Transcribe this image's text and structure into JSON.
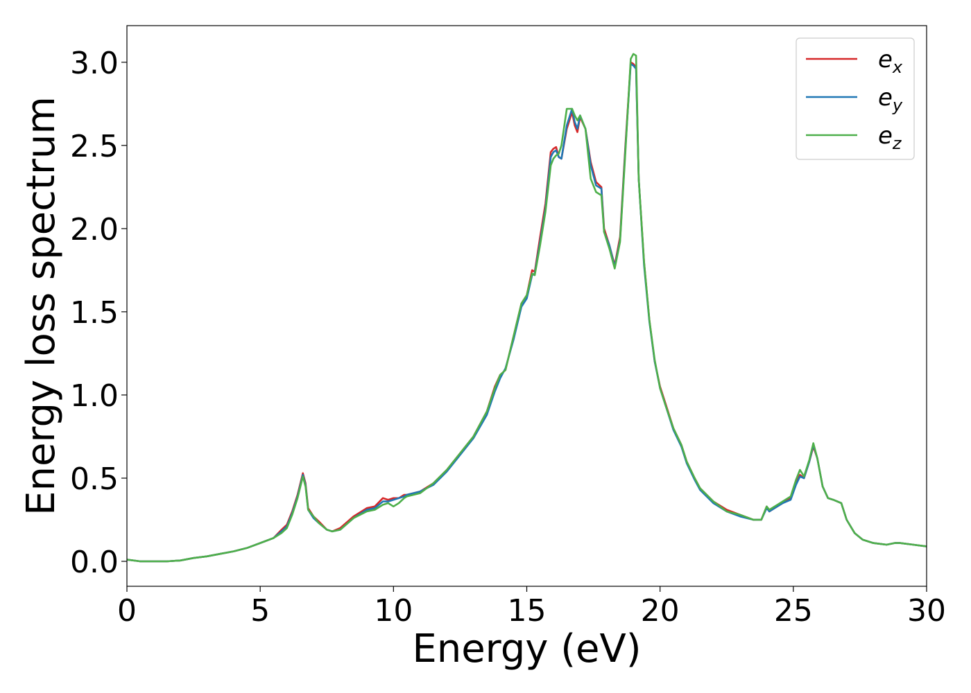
{
  "chart_data": {
    "type": "line",
    "xlabel": "Energy (eV)",
    "ylabel": "Energy loss spectrum",
    "xlim": [
      0,
      30
    ],
    "ylim": [
      -0.15,
      3.22
    ],
    "xticks": [
      0,
      5,
      10,
      15,
      20,
      25,
      30
    ],
    "yticks": [
      0.0,
      0.5,
      1.0,
      1.5,
      2.0,
      2.5,
      3.0
    ],
    "xtick_labels": [
      "0",
      "5",
      "10",
      "15",
      "20",
      "25",
      "30"
    ],
    "ytick_labels": [
      "0.0",
      "0.5",
      "1.0",
      "1.5",
      "2.0",
      "2.5",
      "3.0"
    ],
    "grid": false,
    "legend_position": "top-right",
    "series": [
      {
        "name": "e",
        "subscript": "x",
        "color": "#d62728",
        "x": [
          0,
          0.5,
          1,
          1.5,
          2,
          2.5,
          3,
          3.5,
          4,
          4.5,
          5,
          5.5,
          5.8,
          6,
          6.2,
          6.4,
          6.6,
          6.7,
          6.8,
          7,
          7.2,
          7.5,
          7.7,
          8,
          8.5,
          9,
          9.3,
          9.6,
          9.8,
          10,
          10.2,
          10.4,
          10.5,
          11,
          11.5,
          12,
          12.5,
          13,
          13.5,
          13.8,
          14,
          14.2,
          14.5,
          14.8,
          15,
          15.2,
          15.3,
          15.5,
          15.7,
          15.9,
          16,
          16.1,
          16.2,
          16.3,
          16.5,
          16.7,
          16.8,
          16.9,
          17,
          17.2,
          17.4,
          17.6,
          17.8,
          17.9,
          18.1,
          18.3,
          18.5,
          18.7,
          18.9,
          19.0,
          19.1,
          19.2,
          19.4,
          19.6,
          19.8,
          20,
          20.2,
          20.5,
          20.8,
          21,
          21.3,
          21.5,
          22,
          22.5,
          23,
          23.5,
          23.8,
          24,
          24.1,
          24.3,
          24.6,
          24.9,
          25.1,
          25.25,
          25.4,
          25.6,
          25.75,
          25.9,
          26.1,
          26.3,
          26.5,
          26.8,
          27,
          27.3,
          27.6,
          28,
          28.5,
          28.8,
          29,
          29.5,
          30
        ],
        "y": [
          0.01,
          0,
          0,
          0,
          0.005,
          0.02,
          0.03,
          0.045,
          0.06,
          0.08,
          0.11,
          0.14,
          0.19,
          0.22,
          0.3,
          0.4,
          0.53,
          0.47,
          0.32,
          0.27,
          0.24,
          0.19,
          0.18,
          0.2,
          0.27,
          0.32,
          0.33,
          0.38,
          0.37,
          0.38,
          0.38,
          0.4,
          0.4,
          0.42,
          0.47,
          0.55,
          0.65,
          0.75,
          0.9,
          1.05,
          1.12,
          1.15,
          1.35,
          1.55,
          1.6,
          1.75,
          1.74,
          1.95,
          2.15,
          2.46,
          2.48,
          2.49,
          2.43,
          2.42,
          2.6,
          2.7,
          2.62,
          2.58,
          2.67,
          2.6,
          2.4,
          2.28,
          2.25,
          2.0,
          1.9,
          1.78,
          1.95,
          2.5,
          3.0,
          2.99,
          2.97,
          2.3,
          1.8,
          1.45,
          1.2,
          1.05,
          0.95,
          0.8,
          0.7,
          0.6,
          0.5,
          0.44,
          0.36,
          0.31,
          0.28,
          0.25,
          0.25,
          0.33,
          0.3,
          0.32,
          0.35,
          0.38,
          0.47,
          0.52,
          0.5,
          0.6,
          0.69,
          0.62,
          0.45,
          0.38,
          0.37,
          0.35,
          0.25,
          0.17,
          0.13,
          0.11,
          0.1,
          0.11,
          0.11,
          0.1,
          0.09
        ]
      },
      {
        "name": "e",
        "subscript": "y",
        "color": "#1f77b4",
        "x": [
          0,
          0.5,
          1,
          1.5,
          2,
          2.5,
          3,
          3.5,
          4,
          4.5,
          5,
          5.5,
          5.8,
          6,
          6.2,
          6.4,
          6.6,
          6.7,
          6.8,
          7,
          7.2,
          7.5,
          7.7,
          8,
          8.5,
          9,
          9.3,
          9.6,
          9.8,
          10,
          10.2,
          10.4,
          10.5,
          11,
          11.5,
          12,
          12.5,
          13,
          13.5,
          13.8,
          14,
          14.2,
          14.5,
          14.8,
          15,
          15.2,
          15.3,
          15.5,
          15.7,
          15.9,
          16,
          16.1,
          16.2,
          16.3,
          16.5,
          16.7,
          16.8,
          16.9,
          17,
          17.2,
          17.4,
          17.6,
          17.8,
          17.9,
          18.1,
          18.3,
          18.5,
          18.7,
          18.9,
          19.0,
          19.1,
          19.2,
          19.4,
          19.6,
          19.8,
          20,
          20.2,
          20.5,
          20.8,
          21,
          21.3,
          21.5,
          22,
          22.5,
          23,
          23.5,
          23.8,
          24,
          24.1,
          24.3,
          24.6,
          24.9,
          25.1,
          25.25,
          25.4,
          25.6,
          25.75,
          25.9,
          26.1,
          26.3,
          26.5,
          26.8,
          27,
          27.3,
          27.6,
          28,
          28.5,
          28.8,
          29,
          29.5,
          30
        ],
        "y": [
          0.01,
          0,
          0,
          0,
          0.005,
          0.02,
          0.03,
          0.045,
          0.06,
          0.08,
          0.11,
          0.14,
          0.18,
          0.21,
          0.29,
          0.39,
          0.52,
          0.46,
          0.31,
          0.26,
          0.23,
          0.19,
          0.18,
          0.19,
          0.26,
          0.31,
          0.32,
          0.36,
          0.36,
          0.37,
          0.38,
          0.39,
          0.4,
          0.42,
          0.46,
          0.54,
          0.64,
          0.74,
          0.88,
          1.02,
          1.1,
          1.16,
          1.33,
          1.53,
          1.58,
          1.72,
          1.73,
          1.92,
          2.12,
          2.43,
          2.46,
          2.47,
          2.43,
          2.42,
          2.62,
          2.72,
          2.64,
          2.6,
          2.68,
          2.6,
          2.38,
          2.26,
          2.24,
          1.98,
          1.9,
          1.77,
          1.93,
          2.48,
          2.99,
          2.98,
          2.96,
          2.3,
          1.78,
          1.44,
          1.2,
          1.04,
          0.94,
          0.79,
          0.69,
          0.59,
          0.49,
          0.43,
          0.35,
          0.3,
          0.27,
          0.25,
          0.25,
          0.32,
          0.3,
          0.32,
          0.35,
          0.37,
          0.46,
          0.51,
          0.5,
          0.6,
          0.7,
          0.62,
          0.45,
          0.38,
          0.37,
          0.35,
          0.25,
          0.17,
          0.13,
          0.11,
          0.1,
          0.11,
          0.11,
          0.1,
          0.09
        ]
      },
      {
        "name": "e",
        "subscript": "z",
        "color": "#4daf4a",
        "x": [
          0,
          0.5,
          1,
          1.5,
          2,
          2.5,
          3,
          3.5,
          4,
          4.5,
          5,
          5.5,
          5.8,
          6,
          6.2,
          6.4,
          6.6,
          6.7,
          6.8,
          7,
          7.2,
          7.5,
          7.7,
          8,
          8.5,
          9,
          9.3,
          9.6,
          9.8,
          10,
          10.2,
          10.4,
          10.5,
          11,
          11.5,
          12,
          12.5,
          13,
          13.5,
          13.8,
          14,
          14.2,
          14.5,
          14.8,
          15,
          15.2,
          15.3,
          15.5,
          15.7,
          15.9,
          16,
          16.1,
          16.2,
          16.3,
          16.5,
          16.7,
          16.8,
          16.9,
          17,
          17.2,
          17.4,
          17.6,
          17.8,
          17.9,
          18.1,
          18.3,
          18.5,
          18.7,
          18.9,
          19.0,
          19.1,
          19.2,
          19.4,
          19.6,
          19.8,
          20,
          20.2,
          20.5,
          20.8,
          21,
          21.3,
          21.5,
          22,
          22.5,
          23,
          23.5,
          23.8,
          24,
          24.1,
          24.3,
          24.6,
          24.9,
          25.1,
          25.25,
          25.4,
          25.6,
          25.75,
          25.9,
          26.1,
          26.3,
          26.5,
          26.8,
          27,
          27.3,
          27.6,
          28,
          28.5,
          28.8,
          29,
          29.5,
          30
        ],
        "y": [
          0.01,
          0,
          0,
          0,
          0.005,
          0.02,
          0.03,
          0.045,
          0.06,
          0.08,
          0.11,
          0.14,
          0.17,
          0.2,
          0.28,
          0.38,
          0.51,
          0.45,
          0.31,
          0.27,
          0.23,
          0.19,
          0.18,
          0.19,
          0.26,
          0.3,
          0.31,
          0.34,
          0.35,
          0.33,
          0.35,
          0.38,
          0.39,
          0.41,
          0.47,
          0.55,
          0.65,
          0.75,
          0.9,
          1.04,
          1.12,
          1.15,
          1.35,
          1.55,
          1.6,
          1.73,
          1.72,
          1.9,
          2.1,
          2.38,
          2.42,
          2.44,
          2.45,
          2.5,
          2.72,
          2.72,
          2.68,
          2.65,
          2.68,
          2.6,
          2.3,
          2.22,
          2.2,
          1.98,
          1.88,
          1.76,
          1.92,
          2.46,
          3.02,
          3.05,
          3.04,
          2.3,
          1.8,
          1.45,
          1.21,
          1.04,
          0.94,
          0.8,
          0.7,
          0.6,
          0.5,
          0.44,
          0.36,
          0.3,
          0.28,
          0.25,
          0.25,
          0.33,
          0.31,
          0.33,
          0.36,
          0.39,
          0.49,
          0.55,
          0.51,
          0.61,
          0.71,
          0.62,
          0.45,
          0.38,
          0.37,
          0.35,
          0.25,
          0.17,
          0.13,
          0.11,
          0.1,
          0.11,
          0.11,
          0.1,
          0.09
        ]
      }
    ]
  }
}
